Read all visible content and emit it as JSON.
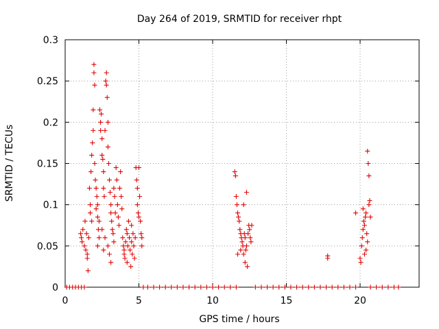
{
  "chart_data": {
    "type": "scatter",
    "title": "Day 264 of 2019, SRMTID for receiver rhpt",
    "xlabel": "GPS time / hours",
    "ylabel": "SRMTID / TECUs",
    "xlim": [
      0,
      24
    ],
    "ylim": [
      0,
      0.3
    ],
    "xticks": [
      0,
      5,
      10,
      15,
      20
    ],
    "xtick_labels": [
      "0",
      "5",
      "10",
      "15",
      "20"
    ],
    "yticks": [
      0,
      0.05,
      0.1,
      0.15,
      0.2,
      0.25,
      0.3
    ],
    "ytick_labels": [
      "0",
      "0.05",
      "0.1",
      "0.15",
      "0.2",
      "0.25",
      "0.3"
    ],
    "grid": true,
    "series": [
      {
        "name": "SRMTID",
        "color": "#e00000",
        "marker": "plus",
        "points": [
          [
            0.1,
            0
          ],
          [
            0.3,
            0
          ],
          [
            0.5,
            0
          ],
          [
            0.7,
            0
          ],
          [
            0.9,
            0
          ],
          [
            1.1,
            0
          ],
          [
            1.3,
            0
          ],
          [
            5.3,
            0
          ],
          [
            5.6,
            0
          ],
          [
            6.0,
            0
          ],
          [
            6.4,
            0
          ],
          [
            6.8,
            0
          ],
          [
            7.2,
            0
          ],
          [
            7.6,
            0
          ],
          [
            8.0,
            0
          ],
          [
            8.4,
            0
          ],
          [
            8.8,
            0
          ],
          [
            9.2,
            0
          ],
          [
            9.6,
            0
          ],
          [
            10.0,
            0
          ],
          [
            10.4,
            0
          ],
          [
            10.8,
            0
          ],
          [
            11.2,
            0
          ],
          [
            11.6,
            0
          ],
          [
            12.9,
            0
          ],
          [
            13.3,
            0
          ],
          [
            13.7,
            0
          ],
          [
            14.1,
            0
          ],
          [
            14.5,
            0
          ],
          [
            14.9,
            0
          ],
          [
            15.3,
            0
          ],
          [
            15.7,
            0
          ],
          [
            16.1,
            0
          ],
          [
            16.5,
            0
          ],
          [
            16.9,
            0
          ],
          [
            17.3,
            0
          ],
          [
            17.7,
            0
          ],
          [
            18.1,
            0
          ],
          [
            18.5,
            0
          ],
          [
            18.9,
            0
          ],
          [
            19.3,
            0
          ],
          [
            19.7,
            0
          ],
          [
            20.7,
            0
          ],
          [
            21.1,
            0
          ],
          [
            21.5,
            0
          ],
          [
            21.9,
            0
          ],
          [
            22.3,
            0
          ],
          [
            22.6,
            0
          ],
          [
            1.05,
            0.065
          ],
          [
            1.1,
            0.06
          ],
          [
            1.15,
            0.055
          ],
          [
            1.2,
            0.07
          ],
          [
            1.3,
            0.05
          ],
          [
            1.35,
            0.08
          ],
          [
            1.4,
            0.045
          ],
          [
            1.45,
            0.065
          ],
          [
            1.5,
            0.04
          ],
          [
            1.55,
            0.02
          ],
          [
            1.5,
            0.035
          ],
          [
            1.6,
            0.06
          ],
          [
            1.65,
            0.12
          ],
          [
            1.7,
            0.1
          ],
          [
            1.7,
            0.09
          ],
          [
            1.75,
            0.14
          ],
          [
            1.8,
            0.16
          ],
          [
            1.8,
            0.08
          ],
          [
            1.85,
            0.175
          ],
          [
            1.9,
            0.215
          ],
          [
            1.9,
            0.19
          ],
          [
            1.95,
            0.27
          ],
          [
            1.95,
            0.26
          ],
          [
            2.0,
            0.245
          ],
          [
            2.0,
            0.15
          ],
          [
            2.05,
            0.13
          ],
          [
            2.1,
            0.12
          ],
          [
            2.15,
            0.11
          ],
          [
            2.2,
            0.1
          ],
          [
            2.2,
            0.085
          ],
          [
            2.25,
            0.07
          ],
          [
            2.3,
            0.06
          ],
          [
            2.35,
            0.215
          ],
          [
            2.4,
            0.2
          ],
          [
            2.4,
            0.19
          ],
          [
            2.45,
            0.21
          ],
          [
            2.5,
            0.18
          ],
          [
            2.5,
            0.16
          ],
          [
            2.55,
            0.155
          ],
          [
            2.6,
            0.14
          ],
          [
            2.6,
            0.12
          ],
          [
            2.65,
            0.11
          ],
          [
            2.7,
            0.19
          ],
          [
            2.75,
            0.25
          ],
          [
            2.8,
            0.26
          ],
          [
            2.8,
            0.245
          ],
          [
            2.85,
            0.23
          ],
          [
            2.9,
            0.2
          ],
          [
            2.9,
            0.17
          ],
          [
            2.95,
            0.15
          ],
          [
            3.0,
            0.13
          ],
          [
            3.05,
            0.115
          ],
          [
            3.1,
            0.1
          ],
          [
            3.1,
            0.09
          ],
          [
            3.15,
            0.08
          ],
          [
            3.2,
            0.07
          ],
          [
            3.25,
            0.065
          ],
          [
            3.3,
            0.12
          ],
          [
            3.35,
            0.11
          ],
          [
            3.4,
            0.09
          ],
          [
            3.45,
            0.145
          ],
          [
            3.5,
            0.13
          ],
          [
            3.55,
            0.1
          ],
          [
            3.6,
            0.085
          ],
          [
            3.65,
            0.075
          ],
          [
            3.7,
            0.12
          ],
          [
            3.75,
            0.14
          ],
          [
            3.8,
            0.11
          ],
          [
            3.85,
            0.095
          ],
          [
            2.1,
            0.095
          ],
          [
            2.3,
            0.08
          ],
          [
            2.5,
            0.07
          ],
          [
            2.7,
            0.06
          ],
          [
            2.9,
            0.05
          ],
          [
            3.0,
            0.04
          ],
          [
            3.1,
            0.03
          ],
          [
            2.2,
            0.05
          ],
          [
            2.6,
            0.045
          ],
          [
            3.3,
            0.055
          ],
          [
            3.9,
            0.06
          ],
          [
            3.95,
            0.05
          ],
          [
            4.0,
            0.045
          ],
          [
            4.0,
            0.04
          ],
          [
            4.05,
            0.035
          ],
          [
            4.1,
            0.055
          ],
          [
            4.15,
            0.07
          ],
          [
            4.2,
            0.065
          ],
          [
            4.2,
            0.03
          ],
          [
            4.25,
            0.05
          ],
          [
            4.3,
            0.08
          ],
          [
            4.35,
            0.06
          ],
          [
            4.4,
            0.045
          ],
          [
            4.45,
            0.025
          ],
          [
            4.5,
            0.055
          ],
          [
            4.5,
            0.075
          ],
          [
            4.55,
            0.04
          ],
          [
            4.6,
            0.065
          ],
          [
            4.65,
            0.05
          ],
          [
            4.7,
            0.035
          ],
          [
            4.75,
            0.06
          ],
          [
            4.8,
            0.145
          ],
          [
            4.85,
            0.13
          ],
          [
            4.9,
            0.12
          ],
          [
            4.9,
            0.1
          ],
          [
            4.95,
            0.09
          ],
          [
            5.0,
            0.085
          ],
          [
            5.0,
            0.145
          ],
          [
            5.05,
            0.11
          ],
          [
            5.1,
            0.08
          ],
          [
            5.15,
            0.065
          ],
          [
            5.2,
            0.06
          ],
          [
            5.2,
            0.05
          ],
          [
            11.5,
            0.14
          ],
          [
            11.55,
            0.135
          ],
          [
            11.6,
            0.11
          ],
          [
            11.65,
            0.1
          ],
          [
            11.7,
            0.09
          ],
          [
            11.75,
            0.085
          ],
          [
            11.8,
            0.08
          ],
          [
            11.85,
            0.07
          ],
          [
            11.9,
            0.065
          ],
          [
            11.95,
            0.06
          ],
          [
            12.0,
            0.055
          ],
          [
            12.05,
            0.05
          ],
          [
            12.1,
            0.1
          ],
          [
            12.15,
            0.065
          ],
          [
            12.2,
            0.06
          ],
          [
            12.25,
            0.045
          ],
          [
            12.3,
            0.05
          ],
          [
            12.35,
            0.025
          ],
          [
            12.4,
            0.065
          ],
          [
            12.45,
            0.075
          ],
          [
            12.5,
            0.07
          ],
          [
            12.55,
            0.06
          ],
          [
            12.6,
            0.055
          ],
          [
            12.65,
            0.075
          ],
          [
            11.7,
            0.04
          ],
          [
            11.9,
            0.045
          ],
          [
            12.1,
            0.04
          ],
          [
            12.3,
            0.115
          ],
          [
            12.2,
            0.03
          ],
          [
            17.8,
            0.035
          ],
          [
            17.8,
            0.038
          ],
          [
            19.7,
            0.09
          ],
          [
            20.0,
            0.035
          ],
          [
            20.05,
            0.03
          ],
          [
            20.1,
            0.05
          ],
          [
            20.15,
            0.06
          ],
          [
            20.2,
            0.07
          ],
          [
            20.25,
            0.08
          ],
          [
            20.3,
            0.075
          ],
          [
            20.35,
            0.085
          ],
          [
            20.4,
            0.09
          ],
          [
            20.45,
            0.065
          ],
          [
            20.5,
            0.055
          ],
          [
            20.5,
            0.165
          ],
          [
            20.55,
            0.15
          ],
          [
            20.6,
            0.135
          ],
          [
            20.6,
            0.1
          ],
          [
            20.65,
            0.105
          ],
          [
            20.7,
            0.085
          ],
          [
            20.4,
            0.045
          ],
          [
            20.3,
            0.04
          ],
          [
            20.2,
            0.095
          ]
        ]
      }
    ]
  }
}
